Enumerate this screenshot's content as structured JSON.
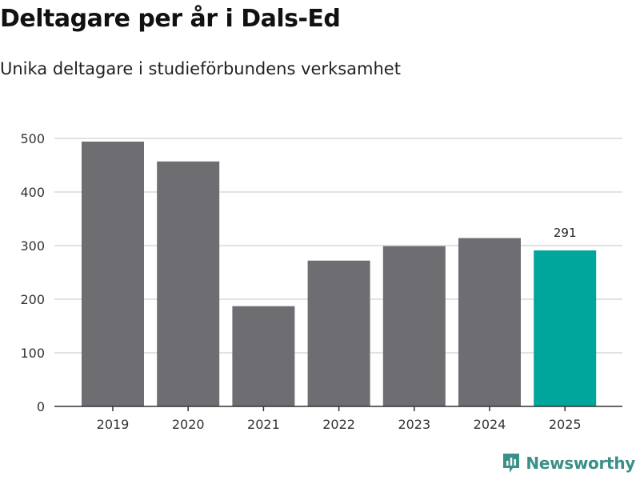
{
  "header": {
    "title": "Deltagare per år i Dals-Ed",
    "subtitle": "Unika deltagare i studieförbundens verksamhet"
  },
  "brand": {
    "name": "Newsworthy",
    "icon": "newsworthy-logo-icon",
    "color": "#3a8f86"
  },
  "colors": {
    "bar": "#6e6d72",
    "highlight": "#00a59b",
    "grid": "#d9d9d9",
    "axis": "#333333"
  },
  "chart_data": {
    "type": "bar",
    "categories": [
      "2019",
      "2020",
      "2021",
      "2022",
      "2023",
      "2024",
      "2025"
    ],
    "values": [
      494,
      457,
      187,
      272,
      299,
      314,
      291
    ],
    "highlight_index": 6,
    "data_labels": [
      {
        "index": 6,
        "text": "291"
      }
    ],
    "title": "Deltagare per år i Dals-Ed",
    "subtitle": "Unika deltagare i studieförbundens verksamhet",
    "xlabel": "",
    "ylabel": "",
    "ylim": [
      0,
      500
    ],
    "yticks": [
      0,
      100,
      200,
      300,
      400,
      500
    ],
    "grid": true,
    "legend": "none"
  }
}
